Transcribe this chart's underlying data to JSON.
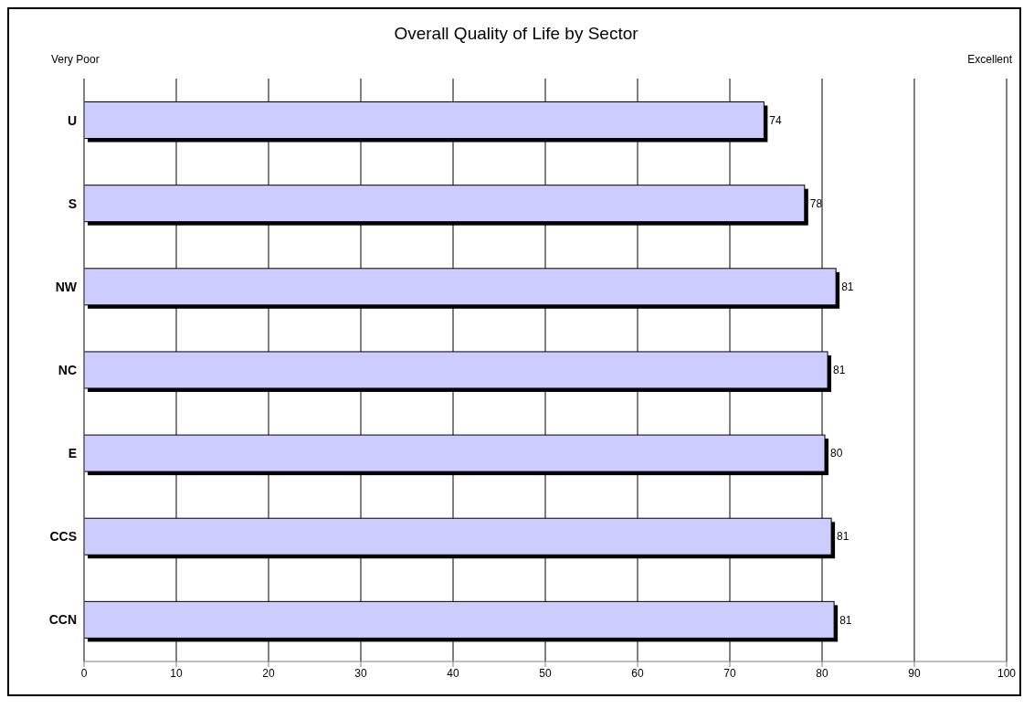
{
  "chart_data": {
    "type": "bar",
    "orientation": "horizontal",
    "title": "Overall Quality of Life by Sector",
    "categories": [
      "U",
      "S",
      "NW",
      "NC",
      "E",
      "CCS",
      "CCN"
    ],
    "values": [
      73.7,
      78.1,
      81.5,
      80.6,
      80.3,
      81.0,
      81.3
    ],
    "value_labels": [
      "74",
      "78",
      "81",
      "81",
      "80",
      "81",
      "81"
    ],
    "color": "#ccccff",
    "xlim": [
      0,
      100
    ],
    "xticks": [
      0,
      10,
      20,
      30,
      40,
      50,
      60,
      70,
      80,
      90,
      100
    ],
    "grid": "x",
    "annotations": [
      "Very Poor",
      "Excellent"
    ]
  }
}
